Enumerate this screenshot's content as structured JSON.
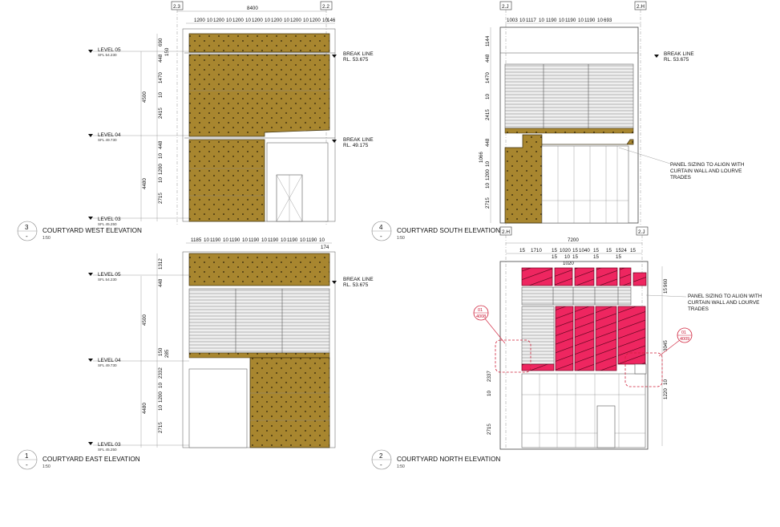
{
  "sheet": {
    "views": [
      {
        "id": "courtyard-west",
        "number": "3",
        "sheet_ref": "-",
        "title": "COURTYARD WEST ELEVATION",
        "scale": "1:50",
        "grids": [
          "2.3",
          "2.2"
        ],
        "overall_dim": "8400",
        "top_dims": [
          "1200",
          "10",
          "1200",
          "10",
          "1200",
          "10",
          "1200",
          "10",
          "1200",
          "10",
          "1200",
          "10",
          "1200",
          "10",
          "146"
        ],
        "side_dims": [
          "690",
          "150",
          "448",
          "1470",
          "10",
          "2415",
          "448",
          "10",
          "1200",
          "10",
          "2715"
        ],
        "overall_side": [
          "4500",
          "4480"
        ],
        "levels": [
          {
            "name": "LEVEL 05",
            "sfl": "SFL 54.230"
          },
          {
            "name": "LEVEL 04",
            "sfl": "SFL 49.730"
          },
          {
            "name": "LEVEL 03",
            "sfl": "SFL 45.250"
          }
        ],
        "break_lines": [
          {
            "label": "BREAK LINE",
            "rl": "RL. 53.675"
          },
          {
            "label": "BREAK LINE",
            "rl": "RL. 49.175"
          }
        ]
      },
      {
        "id": "courtyard-south",
        "number": "4",
        "sheet_ref": "-",
        "title": "COURTYARD SOUTH ELEVATION",
        "scale": "1:50",
        "grids": [
          "2.J",
          "2.H"
        ],
        "top_dims": [
          "1003",
          "10",
          "1117",
          "10",
          "1190",
          "10",
          "1190",
          "10",
          "1190",
          "10",
          "693"
        ],
        "side_dims": [
          "1144",
          "448",
          "1470",
          "10",
          "2415",
          "448",
          "1066",
          "10",
          "1200",
          "10",
          "2715"
        ],
        "break_lines": [
          {
            "label": "BREAK LINE",
            "rl": "RL. 53.675"
          }
        ],
        "note": [
          "PANEL SIZING TO ALIGN WITH",
          "CURTAIN WALL AND LOURVE",
          "TRADES"
        ]
      },
      {
        "id": "courtyard-east",
        "number": "1",
        "sheet_ref": "-",
        "title": "COURTYARD EAST ELEVATION",
        "scale": "1:50",
        "top_dims": [
          "1185",
          "10",
          "1190",
          "10",
          "1190",
          "10",
          "1190",
          "10",
          "1190",
          "10",
          "1190",
          "10",
          "1190",
          "10",
          "174"
        ],
        "side_dims": [
          "1312",
          "448",
          "150",
          "285",
          "2332",
          "10",
          "1200",
          "10",
          "2715"
        ],
        "overall_side": [
          "4500",
          "4480"
        ],
        "levels": [
          {
            "name": "LEVEL 05",
            "sfl": "SFL 54.230"
          },
          {
            "name": "LEVEL 04",
            "sfl": "SFL 49.730"
          },
          {
            "name": "LEVEL 03",
            "sfl": "SFL 45.250"
          }
        ],
        "break_lines": [
          {
            "label": "BREAK LINE",
            "rl": "RL. 53.675"
          }
        ]
      },
      {
        "id": "courtyard-north",
        "number": "2",
        "sheet_ref": "-",
        "title": "COURTYARD NORTH ELEVATION",
        "scale": "1:50",
        "grids": [
          "2.H",
          "2.J"
        ],
        "overall_dim": "7200",
        "top_dims": [
          "15",
          "1710",
          "15",
          "15",
          "1020",
          "15",
          "1040",
          "15",
          "1524",
          "15",
          "10",
          "1020",
          "15",
          "15",
          "15",
          "15"
        ],
        "side_dims": [
          "960",
          "15",
          "3045",
          "2337",
          "10",
          "1220",
          "10",
          "2715"
        ],
        "note": [
          "PANEL SIZING TO ALIGN WITH",
          "CURTAIN WALL AND LOURVE",
          "TRADES"
        ],
        "callouts": [
          {
            "num": "01",
            "ref": "4008"
          },
          {
            "num": "01",
            "ref": "4009"
          }
        ]
      }
    ]
  }
}
